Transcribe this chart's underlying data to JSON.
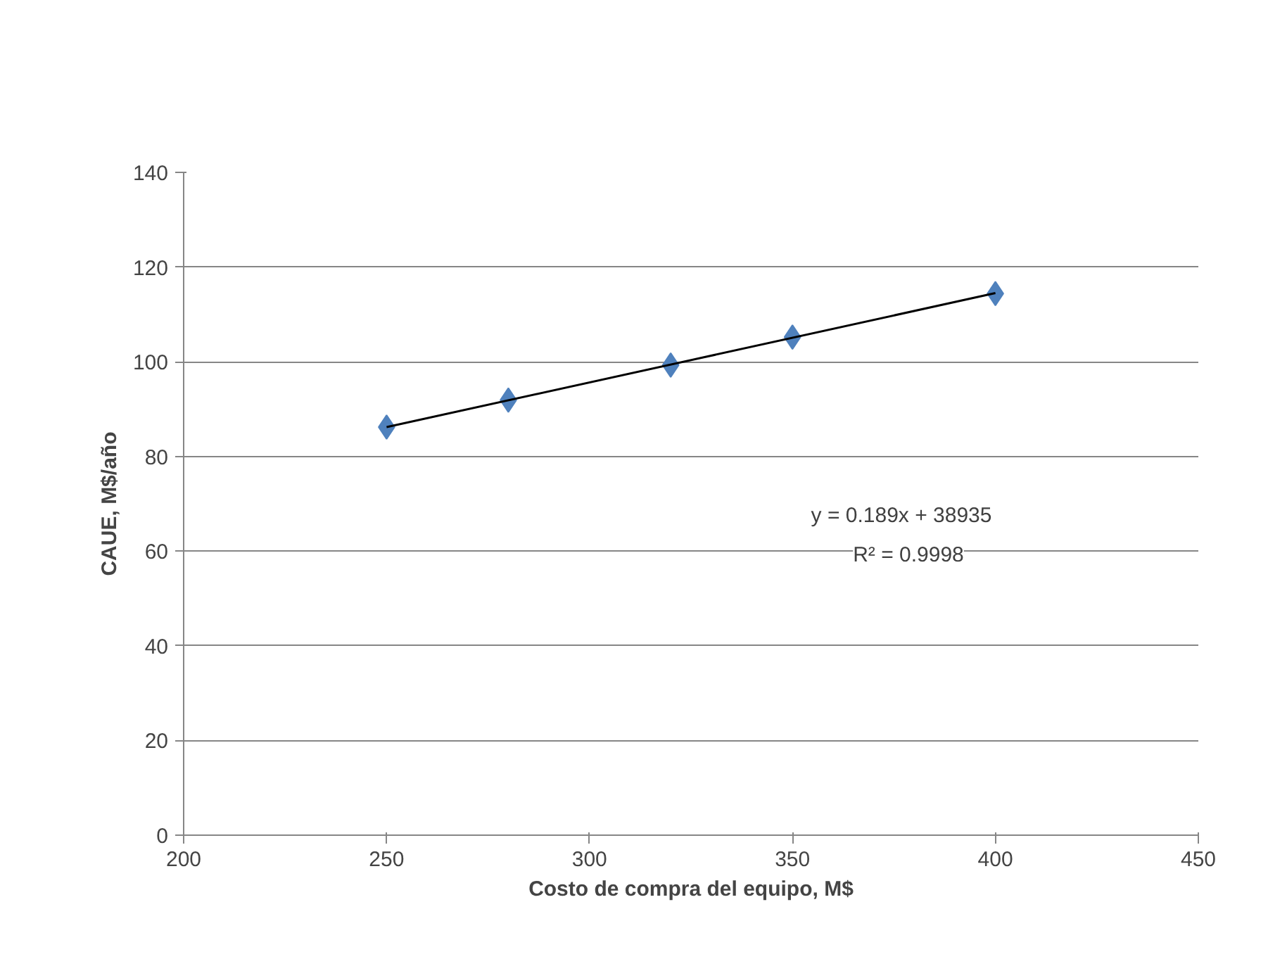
{
  "chart_data": {
    "type": "scatter",
    "xlabel": "Costo de compra del equipo, M$",
    "ylabel": "CAUE, M$/año",
    "xlim": [
      200,
      450
    ],
    "xticks": [
      200,
      250,
      300,
      350,
      400,
      450
    ],
    "ylim": [
      0,
      140
    ],
    "yticks": [
      0,
      20,
      40,
      60,
      80,
      100,
      120,
      140
    ],
    "grid": "y",
    "series": [
      {
        "color": "#4f81bd",
        "marker": "diamond",
        "x": [
          250,
          280,
          320,
          350,
          400
        ],
        "values": [
          86.2,
          91.9,
          99.3,
          105.2,
          114.4
        ]
      },
      {
        "type": "line",
        "color": "#000000",
        "marker": "none",
        "x": [
          250,
          400
        ],
        "values": [
          86.2,
          114.5
        ]
      }
    ],
    "annotations": [
      "y = 0.189x + 38935",
      "R² = 0.9998"
    ]
  }
}
